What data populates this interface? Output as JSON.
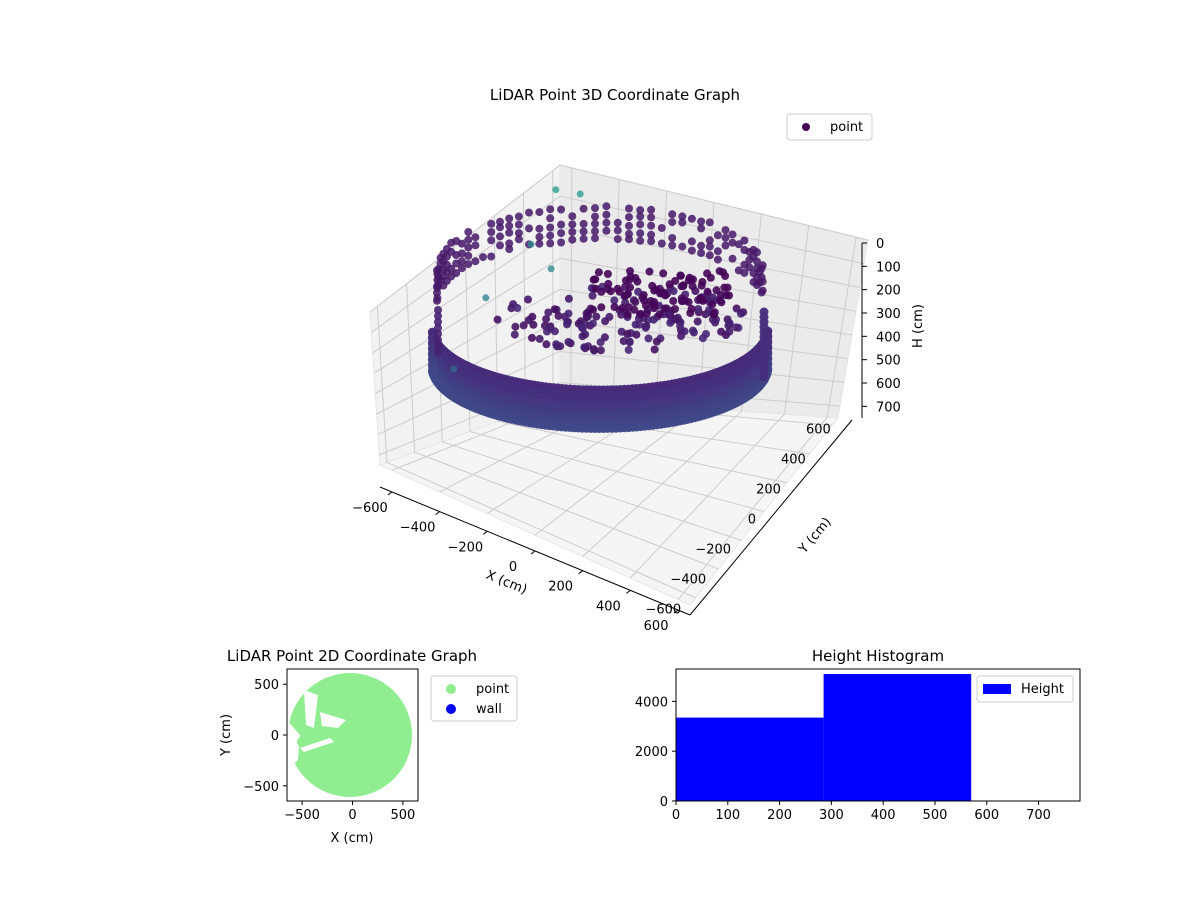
{
  "chart_data": [
    {
      "type": "scatter",
      "projection": "3d",
      "title": "LiDAR Point 3D Coordinate Graph",
      "xlabel": "X (cm)",
      "ylabel": "Y (cm)",
      "zlabel": "H (cm)",
      "xticks": [
        "−600",
        "−400",
        "−200",
        "0",
        "200",
        "400",
        "600"
      ],
      "yticks": [
        "600",
        "400",
        "200",
        "0",
        "−200",
        "−400",
        "−600"
      ],
      "zticks": [
        "0",
        "100",
        "200",
        "300",
        "400",
        "500",
        "600",
        "700"
      ],
      "xlim": [
        -650,
        650
      ],
      "ylim": [
        -650,
        650
      ],
      "zlim": [
        0,
        750
      ],
      "z_axis_inverted": true,
      "grid": true,
      "colormap": "viridis",
      "legend": {
        "placement": "top-right",
        "entries": [
          {
            "label": "point",
            "color": "#440154"
          }
        ]
      },
      "series": [
        {
          "name": "point",
          "description_values": {
            "wall_ring_radius_cm": 560,
            "wall_ring_h_range_cm": [
              350,
              720
            ],
            "ceiling_cluster_h_range_cm": [
              0,
              150
            ]
          },
          "outlier_points": [
            {
              "x": -600,
              "y": -200,
              "h": 500
            },
            {
              "x": -580,
              "y": 0,
              "h": 300
            },
            {
              "x": -500,
              "y": 200,
              "h": 150
            },
            {
              "x": -480,
              "y": 350,
              "h": 0
            },
            {
              "x": -430,
              "y": 450,
              "h": 30
            },
            {
              "x": -380,
              "y": 150,
              "h": 200
            }
          ]
        }
      ]
    },
    {
      "type": "scatter",
      "title": "LiDAR Point 2D Coordinate Graph",
      "xlabel": "X (cm)",
      "ylabel": "Y (cm)",
      "xticks": [
        "−500",
        "0",
        "500"
      ],
      "yticks": [
        "500",
        "0",
        "−500"
      ],
      "xlim": [
        -650,
        650
      ],
      "ylim": [
        -650,
        650
      ],
      "legend": {
        "placement": "outside-right",
        "entries": [
          {
            "label": "point",
            "color": "#90ee90"
          },
          {
            "label": "wall",
            "color": "#0000ff"
          }
        ]
      },
      "description_values": {
        "disk_radius_cm": 600
      }
    },
    {
      "type": "bar",
      "subtype": "histogram",
      "title": "Height Histogram",
      "xticks": [
        "0",
        "100",
        "200",
        "300",
        "400",
        "500",
        "600",
        "700"
      ],
      "yticks": [
        "0",
        "2000",
        "4000"
      ],
      "xlim": [
        0,
        780
      ],
      "ylim": [
        0,
        5300
      ],
      "color": "#0000ff",
      "legend": {
        "placement": "top-right",
        "entries": [
          {
            "label": "Height",
            "color": "#0000ff"
          }
        ]
      },
      "bins": [
        {
          "from": 0,
          "to": 285,
          "value": 3350
        },
        {
          "from": 285,
          "to": 570,
          "value": 5100
        }
      ]
    }
  ]
}
